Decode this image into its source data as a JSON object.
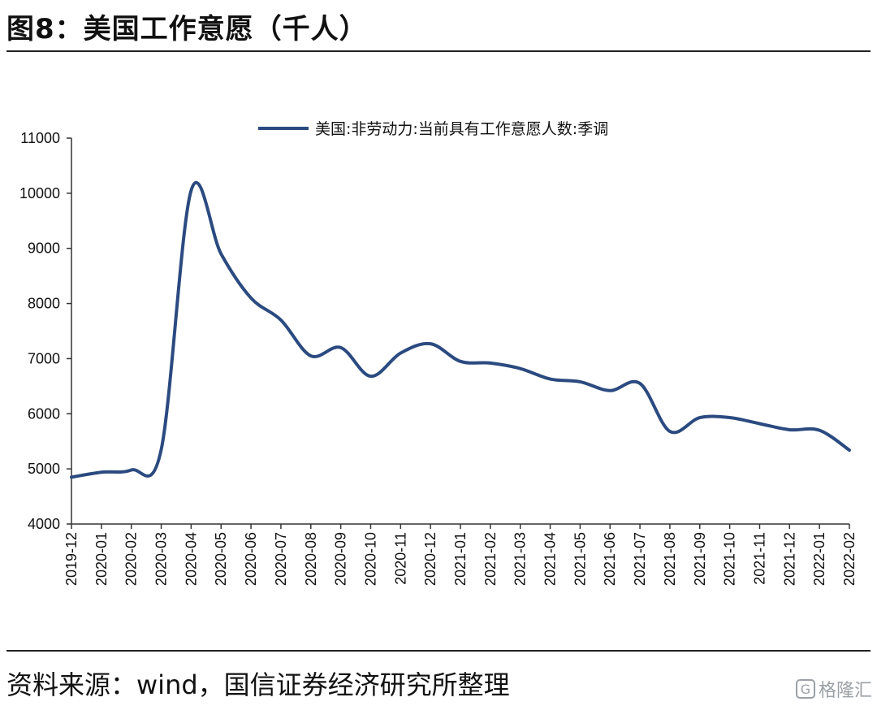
{
  "header": {
    "title": "图8：美国工作意愿（千人）"
  },
  "footer": {
    "source": "资料来源：wind，国信证券经济研究所整理",
    "watermark": "格隆汇"
  },
  "chart_data": {
    "type": "line",
    "title": "图8：美国工作意愿（千人）",
    "xlabel": "",
    "ylabel": "",
    "ylim": [
      4000,
      11000
    ],
    "yticks": [
      4000,
      5000,
      6000,
      7000,
      8000,
      9000,
      10000,
      11000
    ],
    "grid": false,
    "legend_position": "top-center",
    "line_color": "#2b4a80",
    "categories": [
      "2019-12",
      "2020-01",
      "2020-02",
      "2020-03",
      "2020-04",
      "2020-05",
      "2020-06",
      "2020-07",
      "2020-08",
      "2020-09",
      "2020-10",
      "2020-11",
      "2020-12",
      "2021-01",
      "2021-02",
      "2021-03",
      "2021-04",
      "2021-05",
      "2021-06",
      "2021-07",
      "2021-08",
      "2021-09",
      "2021-10",
      "2021-11",
      "2021-12",
      "2022-01",
      "2022-02"
    ],
    "series": [
      {
        "name": "美国:非劳动力:当前具有工作意愿人数:季调",
        "values": [
          4850,
          4940,
          4980,
          5350,
          10050,
          8900,
          8100,
          7700,
          7050,
          7200,
          6680,
          7100,
          7270,
          6950,
          6920,
          6820,
          6630,
          6580,
          6420,
          6550,
          5680,
          5930,
          5930,
          5820,
          5710,
          5700,
          5340
        ]
      }
    ]
  }
}
